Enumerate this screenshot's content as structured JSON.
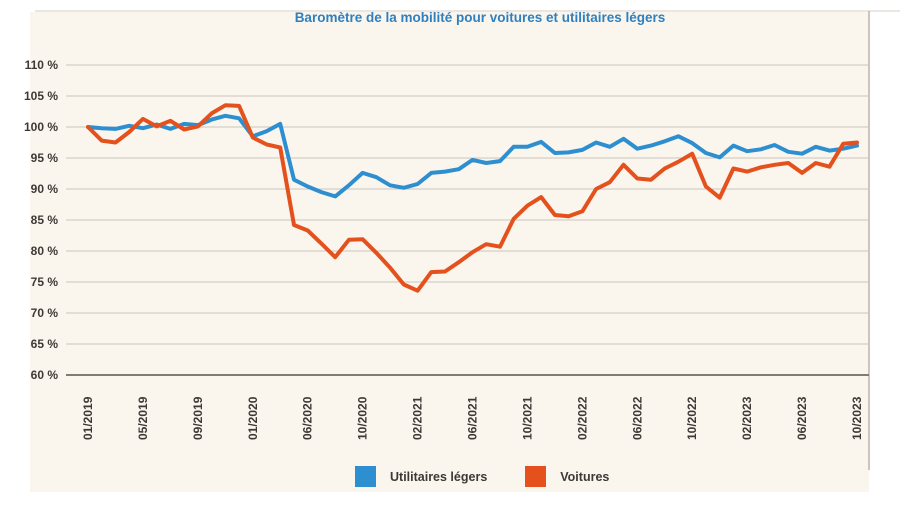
{
  "page": {
    "background": "#ffffff",
    "panel_background": "#faf5ed"
  },
  "chart_data": {
    "type": "line",
    "title": "Baromètre de la mobilité pour voitures et utilitaires légers",
    "title_color": "#2f80c0",
    "x": [
      "01/2019",
      "02/2019",
      "03/2019",
      "04/2019",
      "05/2019",
      "06/2019",
      "07/2019",
      "08/2019",
      "09/2019",
      "10/2019",
      "11/2019",
      "12/2019",
      "01/2020",
      "02/2020",
      "03/2020",
      "05/2020",
      "06/2020",
      "07/2020",
      "08/2020",
      "09/2020",
      "10/2020",
      "11/2020",
      "12/2020",
      "01/2021",
      "02/2021",
      "03/2021",
      "04/2021",
      "05/2021",
      "06/2021",
      "07/2021",
      "08/2021",
      "09/2021",
      "10/2021",
      "11/2021",
      "12/2021",
      "01/2022",
      "02/2022",
      "03/2022",
      "04/2022",
      "05/2022",
      "06/2022",
      "07/2022",
      "08/2022",
      "09/2022",
      "10/2022",
      "11/2022",
      "12/2022",
      "01/2023",
      "02/2023",
      "03/2023",
      "04/2023",
      "05/2023",
      "06/2023",
      "07/2023",
      "08/2023",
      "09/2023",
      "10/2023"
    ],
    "x_tick_labels": [
      "01/2019",
      "05/2019",
      "09/2019",
      "01/2020",
      "06/2020",
      "10/2020",
      "02/2021",
      "06/2021",
      "10/2021",
      "02/2022",
      "06/2022",
      "10/2022",
      "02/2023",
      "06/2023",
      "10/2023"
    ],
    "x_tick_every": 4,
    "y_tick_values": [
      110,
      105,
      100,
      95,
      90,
      85,
      80,
      75,
      70,
      65,
      60
    ],
    "y_tick_labels": [
      "110 %",
      "105 %",
      "100 %",
      "95 %",
      "90 %",
      "85 %",
      "80 %",
      "75 %",
      "70 %",
      "65 %",
      "60 %"
    ],
    "ylim": [
      60,
      110
    ],
    "grid": true,
    "grid_color": "#cbc6be",
    "axis_color": "#807b75",
    "rule_color": "#d4cfc7",
    "tick_text_color": "#3d3935",
    "legend_position": "bottom",
    "series": [
      {
        "name": "Utilitaires légers",
        "color": "#2e8fd0",
        "values": [
          100,
          99.8,
          99.7,
          100.2,
          99.8,
          100.4,
          99.7,
          100.5,
          100.3,
          101.2,
          101.8,
          101.4,
          98.5,
          99.3,
          100.5,
          91.5,
          90.4,
          89.5,
          88.8,
          90.6,
          92.6,
          91.9,
          90.6,
          90.2,
          90.8,
          92.6,
          92.8,
          93.2,
          94.7,
          94.2,
          94.5,
          96.8,
          96.8,
          97.6,
          95.8,
          95.9,
          96.3,
          97.5,
          96.8,
          98.1,
          96.5,
          97,
          97.7,
          98.5,
          97.4,
          95.8,
          95.1,
          97,
          96.1,
          96.4,
          97.1,
          96,
          95.7,
          96.8,
          96.2,
          96.5,
          97
        ]
      },
      {
        "name": "Voitures",
        "color": "#e4511c",
        "values": [
          100,
          97.8,
          97.5,
          99.2,
          101.3,
          100.1,
          101,
          99.6,
          100.1,
          102.2,
          103.5,
          103.4,
          98.3,
          97.2,
          96.7,
          84.2,
          83.3,
          81.2,
          79,
          81.8,
          81.9,
          79.7,
          77.3,
          74.6,
          73.6,
          76.6,
          76.7,
          78.2,
          79.8,
          81.1,
          80.7,
          85.2,
          87.3,
          88.7,
          85.8,
          85.6,
          86.4,
          90,
          91.1,
          93.9,
          91.7,
          91.5,
          93.3,
          94.4,
          95.7,
          90.4,
          88.6,
          93.3,
          92.8,
          93.5,
          93.9,
          94.2,
          92.6,
          94.2,
          93.6,
          97.3,
          97.5
        ]
      }
    ]
  }
}
